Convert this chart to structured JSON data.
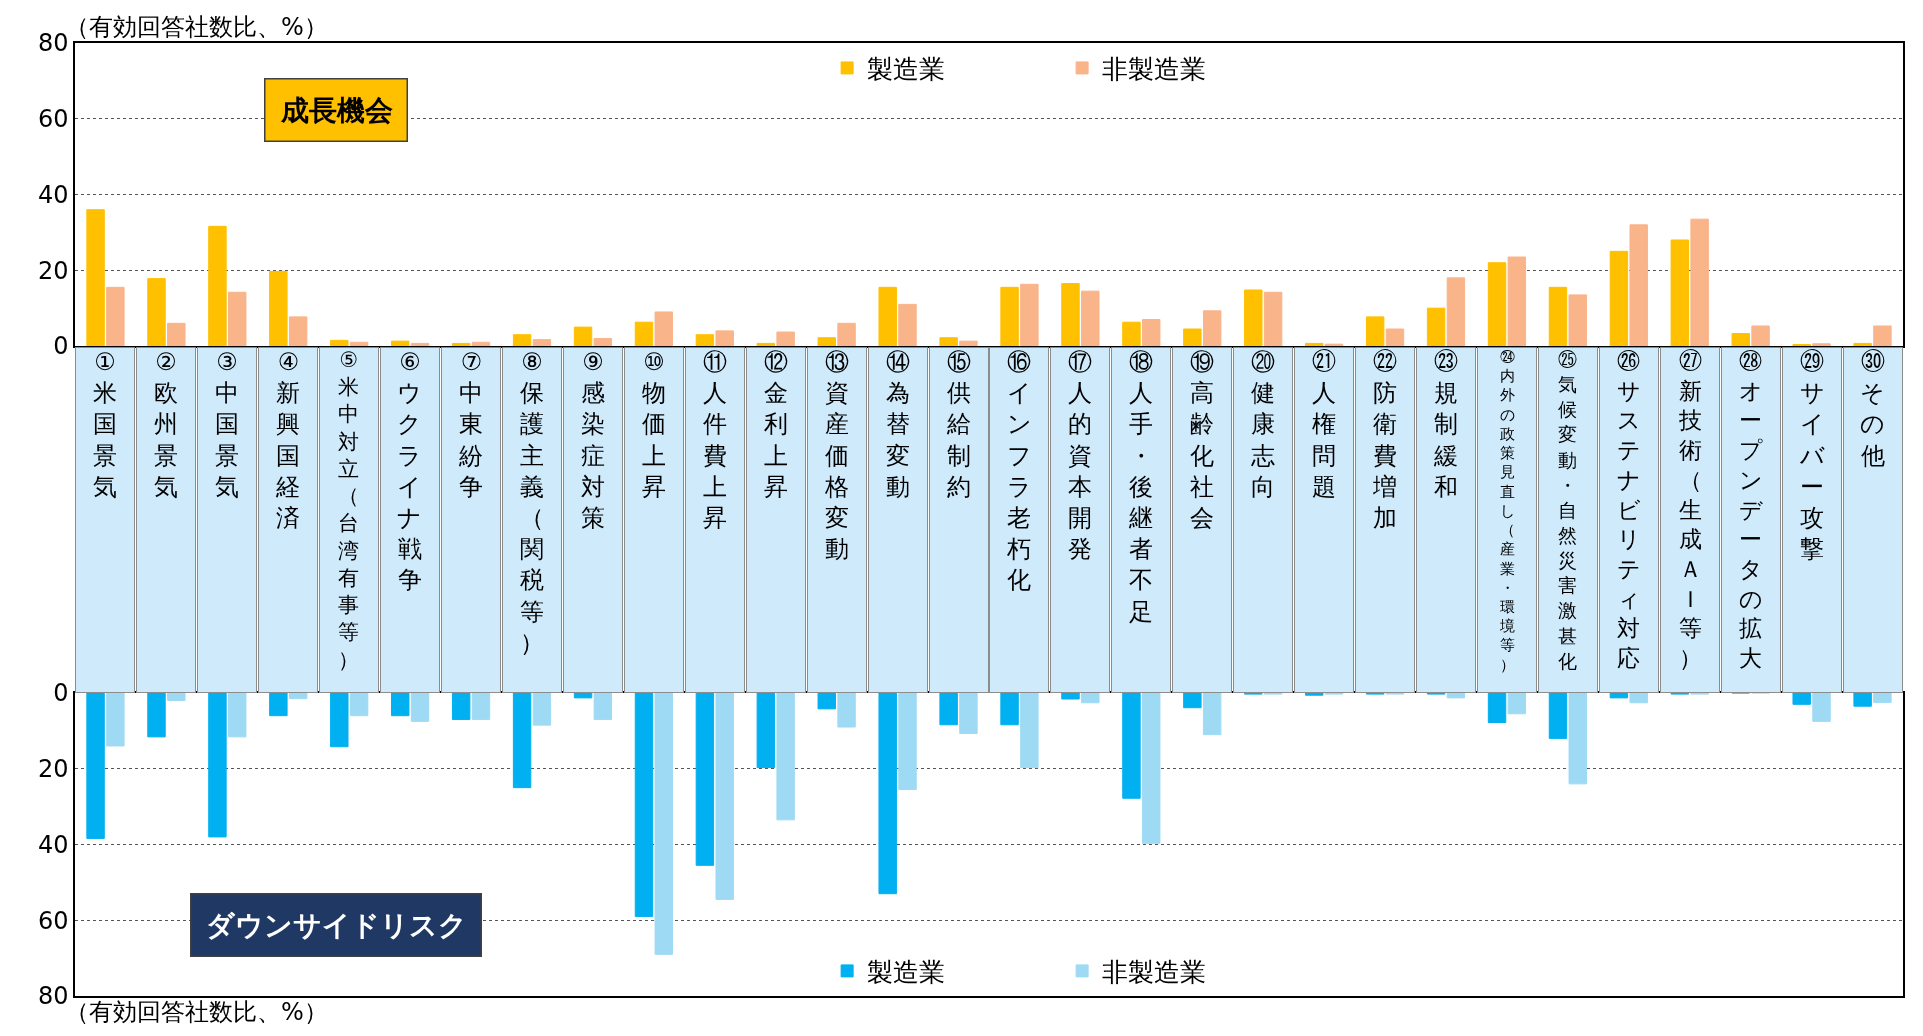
{
  "chart_data": [
    {
      "type": "bar",
      "title": "成長機会",
      "ylabel": "（有効回答社数比、%）",
      "legend": "top",
      "grid": "y",
      "ylim": [
        0,
        80
      ],
      "yticks": [
        0,
        20,
        40,
        60,
        80
      ],
      "categories": [
        "①米国景気",
        "②欧州景気",
        "③中国景気",
        "④新興国経済",
        "⑤米中対立（台湾有事等）",
        "⑥ウクライナ戦争",
        "⑦中東紛争",
        "⑧保護主義（関税等）",
        "⑨感染症対策",
        "⑩物価上昇",
        "⑪人件費上昇",
        "⑫金利上昇",
        "⑬資産価格変動",
        "⑭為替変動",
        "⑮供給制約",
        "⑯インフラ老朽化",
        "⑰人的資本開発",
        "⑱人手・後継者不足",
        "⑲高齢化社会",
        "⑳健康志向",
        "㉑人権問題",
        "㉒防衛費増加",
        "㉓規制緩和",
        "㉔内外の政策見直し（産業・環境等）",
        "㉕気候変動・自然災害激甚化",
        "㉖サステナビリティ対応",
        "㉗新技術（生成ＡＩ等）",
        "㉘オープンデータの拡大",
        "㉙サイバー攻撃",
        "㉚その他"
      ],
      "series": [
        {
          "name": "製造業",
          "color": "#ffc000",
          "values": [
            36,
            17.8,
            31.6,
            19.7,
            1.5,
            1.3,
            0.7,
            3,
            5,
            6.3,
            3,
            0.7,
            2.2,
            15.5,
            2.2,
            15.5,
            16.5,
            6.3,
            4.5,
            14.8,
            0.7,
            7.7,
            10,
            22,
            15.5,
            25,
            28,
            3.3,
            0.4,
            0.7
          ]
        },
        {
          "name": "非製造業",
          "color": "#f9b48a",
          "values": [
            15.5,
            6,
            14.2,
            7.7,
            1,
            0.7,
            1,
            1.7,
            2,
            9,
            4,
            3.7,
            6,
            11,
            1.3,
            16.3,
            14.5,
            7,
            9.3,
            14.2,
            0.5,
            4.5,
            18,
            23.5,
            13.5,
            32,
            33.5,
            5.3,
            0.6,
            5.3
          ]
        }
      ]
    },
    {
      "type": "bar",
      "title": "ダウンサイドリスク",
      "annotations": [
        "（有効回答社数比、%）"
      ],
      "legend": "bottom",
      "grid": "y",
      "ylim": [
        80,
        0
      ],
      "yticks": [
        0,
        20,
        40,
        60,
        80
      ],
      "tick_labels": "y",
      "categories": [
        "①米国景気",
        "②欧州景気",
        "③中国景気",
        "④新興国経済",
        "⑤米中対立（台湾有事等）",
        "⑥ウクライナ戦争",
        "⑦中東紛争",
        "⑧保護主義（関税等）",
        "⑨感染症対策",
        "⑩物価上昇",
        "⑪人件費上昇",
        "⑫金利上昇",
        "⑬資産価格変動",
        "⑭為替変動",
        "⑮供給制約",
        "⑯インフラ老朽化",
        "⑰人的資本開発",
        "⑱人手・後継者不足",
        "⑲高齢化社会",
        "⑳健康志向",
        "㉑人権問題",
        "㉒防衛費増加",
        "㉓規制緩和",
        "㉔内外の政策見直し（産業・環境等）",
        "㉕気候変動・自然災害激甚化",
        "㉖サステナビリティ対応",
        "㉗新技術（生成ＡＩ等）",
        "㉘オープンデータの拡大",
        "㉙サイバー攻撃",
        "㉚その他"
      ],
      "series": [
        {
          "name": "製造業",
          "color": "#00b0f0",
          "values": [
            38.4,
            11.6,
            38,
            6,
            14.2,
            6,
            7,
            25,
            1.3,
            59,
            45.5,
            19.7,
            4.2,
            53,
            8.4,
            8.4,
            1.6,
            27.8,
            3.9,
            0.3,
            0.6,
            0.3,
            0.3,
            7.8,
            12,
            1.3,
            0.3,
            0,
            3,
            3.5
          ]
        },
        {
          "name": "非製造業",
          "color": "#9fdaf4",
          "values": [
            14,
            2,
            11.6,
            1.5,
            6,
            7.5,
            7,
            8.5,
            7,
            69,
            54.5,
            33.5,
            9,
            25.5,
            10.7,
            19.7,
            2.6,
            39.7,
            11,
            0.3,
            0.3,
            0.3,
            1.3,
            5.5,
            24,
            2.6,
            0.3,
            0,
            7.5,
            2.5
          ]
        }
      ]
    }
  ]
}
